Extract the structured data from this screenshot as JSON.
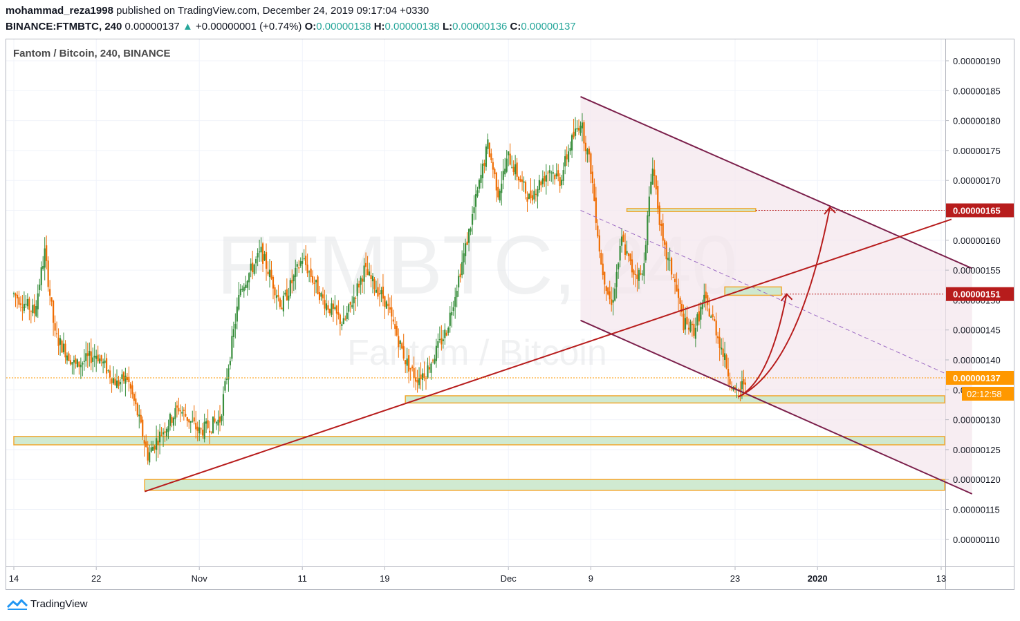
{
  "header": {
    "author": "mohammad_reza1998",
    "published": " published on TradingView.com, December 24, 2019 09:17:04 +0330",
    "symbol": "BINANCE:FTMBTC, 240",
    "price": "0.00000137",
    "change": "+0.00000001 (+0.74%)",
    "o_label": "O:",
    "o_value": "0.00000138",
    "h_label": "H:",
    "h_value": "0.00000138",
    "l_label": "L:",
    "l_value": "0.00000136",
    "c_label": "C:",
    "c_value": "0.00000137",
    "up_arrow": "▲"
  },
  "chart_title": "Fantom / Bitcoin, 240, BINANCE",
  "watermark": {
    "ticker": "FTMBTC, 240",
    "name": "Fantom / Bitcoin"
  },
  "footer": {
    "brand": "TradingView",
    "logo_icon": "tradingview-logo-icon"
  },
  "colors": {
    "up": "#26a69a",
    "candle_up": "#388e3c",
    "candle_down": "#ef6c00",
    "channel": "#7b1f4b",
    "trend": "#b71c1c",
    "zone_fill": "#c8e6c9",
    "zone_border": "#f0a830",
    "badge_red": "#b71c1c",
    "badge_orange": "#ff9800"
  },
  "chart_data": {
    "type": "candlestick",
    "title": "Fantom / Bitcoin, 240, BINANCE",
    "ylim": [
      1.07e-06,
      1.93e-06
    ],
    "y_ticks": [
      "0.00000190",
      "0.00000185",
      "0.00000180",
      "0.00000175",
      "0.00000170",
      "0.00000165",
      "0.00000160",
      "0.00000155",
      "0.00000150",
      "0.00000145",
      "0.00000140",
      "0.00000135",
      "0.00000130",
      "0.00000125",
      "0.00000120",
      "0.00000115",
      "0.00000110"
    ],
    "y_tick_values": [
      190,
      185,
      180,
      175,
      170,
      165,
      160,
      155,
      150,
      145,
      140,
      135,
      130,
      125,
      120,
      115,
      110
    ],
    "x_ticks": [
      {
        "label": "14",
        "day": 0
      },
      {
        "label": "22",
        "day": 8
      },
      {
        "label": "Nov",
        "day": 18
      },
      {
        "label": "11",
        "day": 28
      },
      {
        "label": "19",
        "day": 36
      },
      {
        "label": "Dec",
        "day": 48
      },
      {
        "label": "9",
        "day": 56
      },
      {
        "label": "23",
        "day": 70
      },
      {
        "label": "2020",
        "day": 78,
        "bold": true
      },
      {
        "label": "13",
        "day": 90
      }
    ],
    "price_path": [
      [
        0,
        151
      ],
      [
        2,
        148
      ],
      [
        3,
        158
      ],
      [
        4,
        144
      ],
      [
        6,
        139
      ],
      [
        8,
        141
      ],
      [
        10,
        136
      ],
      [
        11,
        137
      ],
      [
        12,
        131
      ],
      [
        13,
        124
      ],
      [
        14,
        127
      ],
      [
        16,
        132
      ],
      [
        18,
        128
      ],
      [
        20,
        130
      ],
      [
        22,
        152
      ],
      [
        24,
        158
      ],
      [
        26,
        149
      ],
      [
        28,
        157
      ],
      [
        30,
        150
      ],
      [
        32,
        146
      ],
      [
        34,
        155
      ],
      [
        36,
        150
      ],
      [
        38,
        140
      ],
      [
        39,
        137
      ],
      [
        40,
        138
      ],
      [
        42,
        145
      ],
      [
        44,
        160
      ],
      [
        46,
        176
      ],
      [
        47,
        168
      ],
      [
        48,
        174
      ],
      [
        50,
        167
      ],
      [
        52,
        172
      ],
      [
        53,
        170
      ],
      [
        54,
        176
      ],
      [
        55,
        180
      ],
      [
        56,
        172
      ],
      [
        57,
        156
      ],
      [
        58,
        149
      ],
      [
        59,
        160
      ],
      [
        60,
        155
      ],
      [
        61,
        154
      ],
      [
        62,
        173
      ],
      [
        63,
        159
      ],
      [
        64,
        154
      ],
      [
        65,
        146
      ],
      [
        66,
        145
      ],
      [
        67,
        150
      ],
      [
        68,
        146
      ],
      [
        69,
        140
      ],
      [
        70,
        134
      ],
      [
        70.5,
        135
      ],
      [
        71,
        137
      ]
    ],
    "current_price": "0.00000137",
    "current_value": 137,
    "countdown": "02:12:58",
    "levels": [
      {
        "label": "0.00000165",
        "value": 165,
        "color": "red"
      },
      {
        "label": "0.00000151",
        "value": 151,
        "color": "red"
      },
      {
        "label": "0.00000137",
        "value": 137,
        "color": "orange"
      }
    ],
    "support_zones": [
      {
        "from_day": 38,
        "low": 132.8,
        "high": 134
      },
      {
        "from_day": 0,
        "low": 125.8,
        "high": 127.2
      },
      {
        "from_day": 12.7,
        "low": 118.2,
        "high": 120
      }
    ],
    "resistance_boxes": [
      {
        "from_day": 59.5,
        "to_day": 72,
        "low": 164.8,
        "high": 165.3
      },
      {
        "from_day": 69,
        "to_day": 74.5,
        "low": 150.8,
        "high": 152.2
      }
    ],
    "channel": {
      "top": [
        [
          55,
          184
        ],
        [
          93,
          155.3
        ]
      ],
      "bottom": [
        [
          55,
          146.6
        ],
        [
          93,
          117.6
        ]
      ],
      "mid": [
        [
          55,
          165
        ],
        [
          92,
          136.5
        ]
      ]
    },
    "trendline": [
      [
        12.7,
        118
      ],
      [
        91,
        163.5
      ]
    ],
    "projection_arrows": [
      {
        "from": [
          70.3,
          133.8
        ],
        "to": [
          75,
          151
        ]
      },
      {
        "from": [
          70.3,
          133.8
        ],
        "to": [
          79.2,
          165.5
        ]
      }
    ]
  }
}
